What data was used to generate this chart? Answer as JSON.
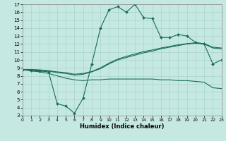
{
  "xlabel": "Humidex (Indice chaleur)",
  "xlim": [
    0,
    23
  ],
  "ylim": [
    3,
    17
  ],
  "xticks": [
    0,
    1,
    2,
    3,
    4,
    5,
    6,
    7,
    8,
    9,
    10,
    11,
    12,
    13,
    14,
    15,
    16,
    17,
    18,
    19,
    20,
    21,
    22,
    23
  ],
  "yticks": [
    3,
    4,
    5,
    6,
    7,
    8,
    9,
    10,
    11,
    12,
    13,
    14,
    15,
    16,
    17
  ],
  "bg_color": "#c5e8e2",
  "grid_color": "#a8d4cc",
  "line_color": "#1a6b5a",
  "curve_main": {
    "x": [
      0,
      1,
      2,
      3,
      4,
      5,
      6,
      7,
      8,
      9,
      10,
      11,
      12,
      13,
      14,
      15,
      16,
      17,
      18,
      19,
      20,
      21,
      22,
      23
    ],
    "y": [
      8.8,
      8.7,
      8.6,
      8.5,
      4.5,
      4.2,
      3.3,
      5.2,
      9.5,
      14.0,
      16.3,
      16.7,
      16.0,
      17.0,
      15.3,
      15.2,
      12.8,
      12.8,
      13.2,
      13.0,
      12.2,
      12.0,
      9.5,
      10.0
    ],
    "marker": true
  },
  "curve_low": {
    "x": [
      0,
      1,
      2,
      3,
      4,
      5,
      6,
      7,
      8,
      9,
      10,
      11,
      12,
      13,
      14,
      15,
      16,
      17,
      18,
      19,
      20,
      21,
      22,
      23
    ],
    "y": [
      8.8,
      8.6,
      8.5,
      8.3,
      8.0,
      7.7,
      7.5,
      7.4,
      7.5,
      7.5,
      7.6,
      7.6,
      7.6,
      7.6,
      7.6,
      7.6,
      7.5,
      7.5,
      7.4,
      7.4,
      7.3,
      7.2,
      6.5,
      6.4
    ],
    "marker": false
  },
  "curve_trend1": {
    "x": [
      0,
      1,
      2,
      3,
      4,
      5,
      6,
      7,
      8,
      9,
      10,
      11,
      12,
      13,
      14,
      15,
      16,
      17,
      18,
      19,
      20,
      21,
      22,
      23
    ],
    "y": [
      8.8,
      8.75,
      8.7,
      8.6,
      8.4,
      8.3,
      8.1,
      8.2,
      8.5,
      8.9,
      9.5,
      10.0,
      10.3,
      10.6,
      10.9,
      11.1,
      11.4,
      11.6,
      11.8,
      12.0,
      12.1,
      12.0,
      11.5,
      11.4
    ],
    "marker": false
  },
  "curve_trend2": {
    "x": [
      0,
      1,
      2,
      3,
      4,
      5,
      6,
      7,
      8,
      9,
      10,
      11,
      12,
      13,
      14,
      15,
      16,
      17,
      18,
      19,
      20,
      21,
      22,
      23
    ],
    "y": [
      8.8,
      8.8,
      8.75,
      8.65,
      8.5,
      8.4,
      8.2,
      8.3,
      8.55,
      9.0,
      9.6,
      10.1,
      10.45,
      10.75,
      11.05,
      11.25,
      11.5,
      11.7,
      11.9,
      12.05,
      12.15,
      12.05,
      11.6,
      11.5
    ],
    "marker": false
  }
}
